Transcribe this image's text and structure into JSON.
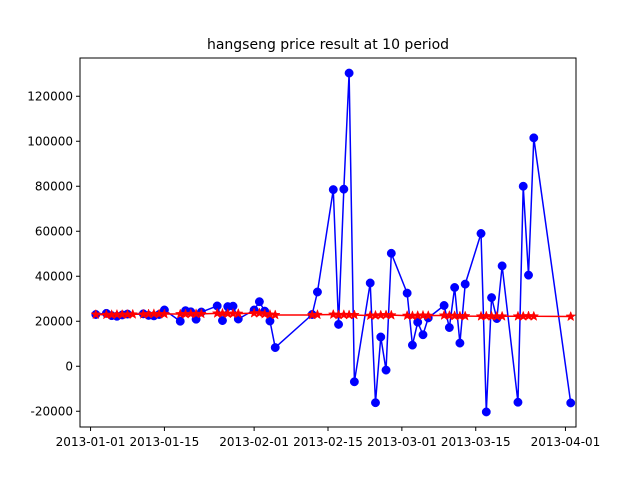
{
  "chart_data": {
    "type": "line",
    "title": "hangseng price result at 10 period",
    "xlabel": "",
    "ylabel": "",
    "xlim": [
      "2012-12-30",
      "2013-04-03"
    ],
    "ylim": [
      -27000,
      137000
    ],
    "x_ticks": [
      "2013-01-01",
      "2013-01-15",
      "2013-02-01",
      "2013-02-15",
      "2013-03-01",
      "2013-03-15",
      "2013-04-01"
    ],
    "y_ticks": [
      -20000,
      0,
      20000,
      40000,
      60000,
      80000,
      100000,
      120000
    ],
    "grid": false,
    "legend": "none",
    "series": [
      {
        "color": "#0000ff",
        "marker": "circle",
        "points": [
          [
            "2013-01-02",
            23000
          ],
          [
            "2013-01-04",
            23500
          ],
          [
            "2013-01-05",
            22500
          ],
          [
            "2013-01-06",
            22200
          ],
          [
            "2013-01-07",
            22800
          ],
          [
            "2013-01-08",
            23200
          ],
          [
            "2013-01-11",
            23300
          ],
          [
            "2013-01-12",
            22600
          ],
          [
            "2013-01-13",
            22400
          ],
          [
            "2013-01-14",
            23000
          ],
          [
            "2013-01-15",
            25000
          ],
          [
            "2013-01-18",
            20000
          ],
          [
            "2013-01-19",
            24700
          ],
          [
            "2013-01-20",
            24200
          ],
          [
            "2013-01-21",
            20900
          ],
          [
            "2013-01-22",
            24100
          ],
          [
            "2013-01-25",
            26800
          ],
          [
            "2013-01-26",
            20300
          ],
          [
            "2013-01-27",
            26500
          ],
          [
            "2013-01-28",
            26700
          ],
          [
            "2013-01-29",
            21000
          ],
          [
            "2013-02-01",
            25000
          ],
          [
            "2013-02-02",
            28700
          ],
          [
            "2013-02-03",
            24500
          ],
          [
            "2013-02-04",
            20100
          ],
          [
            "2013-02-05",
            8300
          ],
          [
            "2013-02-12",
            23000
          ],
          [
            "2013-02-13",
            33000
          ],
          [
            "2013-02-16",
            78500
          ],
          [
            "2013-02-17",
            18600
          ],
          [
            "2013-02-18",
            78700
          ],
          [
            "2013-02-19",
            130300
          ],
          [
            "2013-02-20",
            -6900
          ],
          [
            "2013-02-23",
            37000
          ],
          [
            "2013-02-24",
            -16200
          ],
          [
            "2013-02-25",
            13000
          ],
          [
            "2013-02-26",
            -1700
          ],
          [
            "2013-02-27",
            50200
          ],
          [
            "2013-03-02",
            32500
          ],
          [
            "2013-03-03",
            9400
          ],
          [
            "2013-03-04",
            19600
          ],
          [
            "2013-03-05",
            14000
          ],
          [
            "2013-03-06",
            21500
          ],
          [
            "2013-03-09",
            27000
          ],
          [
            "2013-03-10",
            17200
          ],
          [
            "2013-03-11",
            35000
          ],
          [
            "2013-03-12",
            10300
          ],
          [
            "2013-03-13",
            36500
          ],
          [
            "2013-03-16",
            59000
          ],
          [
            "2013-03-17",
            -20300
          ],
          [
            "2013-03-18",
            30500
          ],
          [
            "2013-03-19",
            21200
          ],
          [
            "2013-03-20",
            44600
          ],
          [
            "2013-03-23",
            -16000
          ],
          [
            "2013-03-24",
            80000
          ],
          [
            "2013-03-25",
            40500
          ],
          [
            "2013-03-26",
            101500
          ],
          [
            "2013-04-02",
            -16300
          ]
        ]
      },
      {
        "color": "#ff0000",
        "marker": "star",
        "points": [
          [
            "2013-01-02",
            23000
          ],
          [
            "2013-01-04",
            22900
          ],
          [
            "2013-01-05",
            22900
          ],
          [
            "2013-01-06",
            23000
          ],
          [
            "2013-01-07",
            23000
          ],
          [
            "2013-01-08",
            23000
          ],
          [
            "2013-01-09",
            23100
          ],
          [
            "2013-01-11",
            23100
          ],
          [
            "2013-01-12",
            23200
          ],
          [
            "2013-01-13",
            23300
          ],
          [
            "2013-01-14",
            23200
          ],
          [
            "2013-01-15",
            23200
          ],
          [
            "2013-01-18",
            23200
          ],
          [
            "2013-01-19",
            23200
          ],
          [
            "2013-01-20",
            23300
          ],
          [
            "2013-01-21",
            23300
          ],
          [
            "2013-01-22",
            23300
          ],
          [
            "2013-01-25",
            23500
          ],
          [
            "2013-01-26",
            23500
          ],
          [
            "2013-01-27",
            23400
          ],
          [
            "2013-01-28",
            23400
          ],
          [
            "2013-01-29",
            23400
          ],
          [
            "2013-02-01",
            23600
          ],
          [
            "2013-02-02",
            23600
          ],
          [
            "2013-02-03",
            23200
          ],
          [
            "2013-02-04",
            23000
          ],
          [
            "2013-02-05",
            22800
          ],
          [
            "2013-02-12",
            22800
          ],
          [
            "2013-02-13",
            22900
          ],
          [
            "2013-02-16",
            23000
          ],
          [
            "2013-02-17",
            22800
          ],
          [
            "2013-02-18",
            22900
          ],
          [
            "2013-02-19",
            22800
          ],
          [
            "2013-02-20",
            22800
          ],
          [
            "2013-02-23",
            22500
          ],
          [
            "2013-02-24",
            22600
          ],
          [
            "2013-02-25",
            22700
          ],
          [
            "2013-02-26",
            22800
          ],
          [
            "2013-02-27",
            22700
          ],
          [
            "2013-03-02",
            22500
          ],
          [
            "2013-03-03",
            22400
          ],
          [
            "2013-03-04",
            22500
          ],
          [
            "2013-03-05",
            22600
          ],
          [
            "2013-03-06",
            22500
          ],
          [
            "2013-03-09",
            22600
          ],
          [
            "2013-03-10",
            22500
          ],
          [
            "2013-03-11",
            22400
          ],
          [
            "2013-03-12",
            22300
          ],
          [
            "2013-03-13",
            22300
          ],
          [
            "2013-03-16",
            22200
          ],
          [
            "2013-03-17",
            22300
          ],
          [
            "2013-03-18",
            22200
          ],
          [
            "2013-03-19",
            22200
          ],
          [
            "2013-03-20",
            22200
          ],
          [
            "2013-03-23",
            22200
          ],
          [
            "2013-03-24",
            22200
          ],
          [
            "2013-03-25",
            22300
          ],
          [
            "2013-03-26",
            22200
          ],
          [
            "2013-04-02",
            22100
          ]
        ]
      }
    ]
  }
}
